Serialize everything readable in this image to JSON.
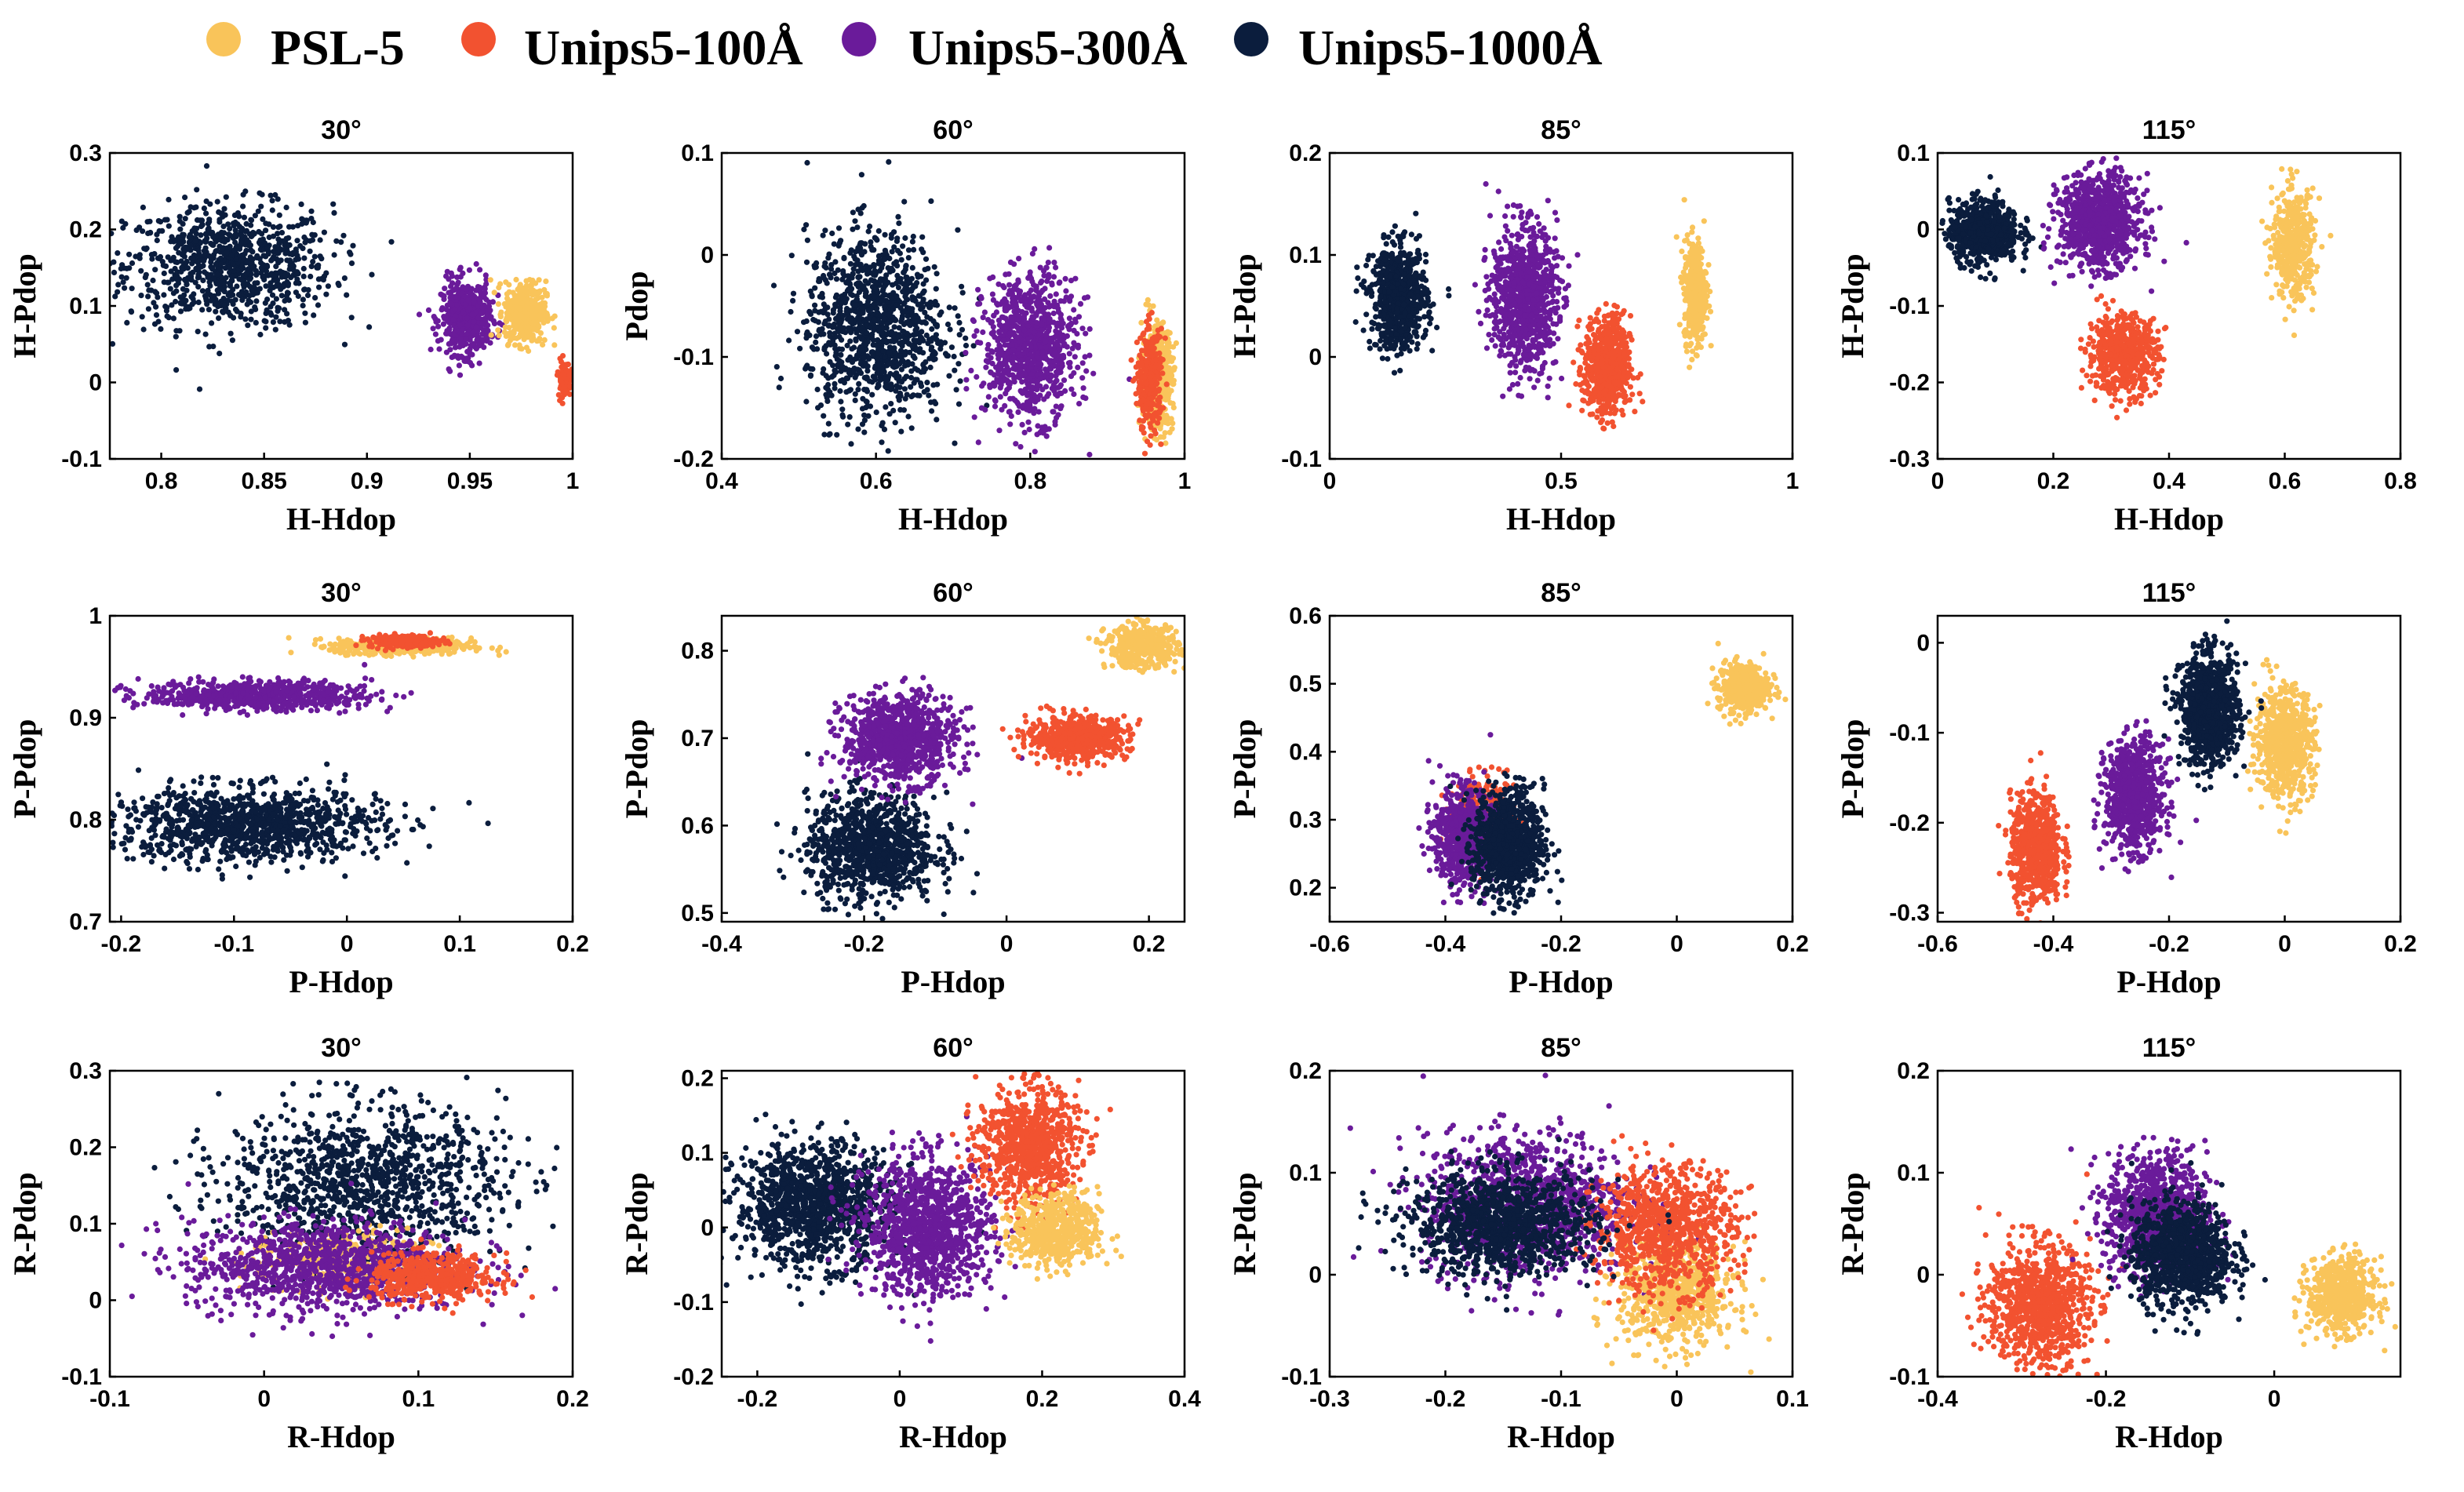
{
  "legend": [
    {
      "label": "PSL-5",
      "color": "#F9C45A"
    },
    {
      "label": "Unips5-100Å",
      "color": "#F25230"
    },
    {
      "label": "Unips5-300Å",
      "color": "#6A1B9A"
    },
    {
      "label": "Unips5-1000Å",
      "color": "#0B1D3D"
    }
  ],
  "chart_data": [
    {
      "type": "scatter",
      "title": "30°",
      "xlabel": "H-Hdop",
      "ylabel": "H-Pdop",
      "xlim": [
        0.775,
        1.0
      ],
      "ylim": [
        -0.1,
        0.3
      ],
      "xticks": [
        "0.8",
        "0.85",
        "0.9",
        "0.95",
        "1"
      ],
      "yticks": [
        "-0.1",
        "0",
        "0.1",
        "0.2",
        "0.3"
      ],
      "series": [
        {
          "color": "#0B1D3D",
          "cx": 0.833,
          "cy": 0.152,
          "sx": 0.025,
          "sy": 0.04,
          "n": 900
        },
        {
          "color": "#6A1B9A",
          "cx": 0.948,
          "cy": 0.085,
          "sx": 0.006,
          "sy": 0.024,
          "n": 500
        },
        {
          "color": "#F9C45A",
          "cx": 0.977,
          "cy": 0.092,
          "sx": 0.005,
          "sy": 0.02,
          "n": 450
        },
        {
          "color": "#F25230",
          "cx": 0.996,
          "cy": 0.005,
          "sx": 0.0015,
          "sy": 0.012,
          "n": 120
        }
      ]
    },
    {
      "type": "scatter",
      "title": "60°",
      "xlabel": "H-Hdop",
      "ylabel": "Pdop",
      "xlim": [
        0.4,
        1.0
      ],
      "ylim": [
        -0.2,
        0.1
      ],
      "xticks": [
        "0.4",
        "0.6",
        "0.8",
        "1"
      ],
      "yticks": [
        "-0.2",
        "-0.1",
        "0",
        "0.1"
      ],
      "series": [
        {
          "color": "#0B1D3D",
          "cx": 0.6,
          "cy": -0.07,
          "sx": 0.045,
          "sy": 0.045,
          "n": 1100
        },
        {
          "color": "#6A1B9A",
          "cx": 0.8,
          "cy": -0.09,
          "sx": 0.03,
          "sy": 0.035,
          "n": 900
        },
        {
          "color": "#F9C45A",
          "cx": 0.965,
          "cy": -0.12,
          "sx": 0.01,
          "sy": 0.025,
          "n": 450
        },
        {
          "color": "#F25230",
          "cx": 0.955,
          "cy": -0.125,
          "sx": 0.008,
          "sy": 0.025,
          "n": 300
        }
      ]
    },
    {
      "type": "scatter",
      "title": "85°",
      "xlabel": "H-Hdop",
      "ylabel": "H-Pdop",
      "xlim": [
        0.0,
        1.0
      ],
      "ylim": [
        -0.1,
        0.2
      ],
      "xticks": [
        "0",
        "0.5",
        "1"
      ],
      "yticks": [
        "-0.1",
        "0",
        "0.1",
        "0.2"
      ],
      "series": [
        {
          "color": "#0B1D3D",
          "cx": 0.15,
          "cy": 0.058,
          "sx": 0.03,
          "sy": 0.025,
          "n": 700
        },
        {
          "color": "#6A1B9A",
          "cx": 0.42,
          "cy": 0.058,
          "sx": 0.035,
          "sy": 0.035,
          "n": 900
        },
        {
          "color": "#F25230",
          "cx": 0.6,
          "cy": -0.01,
          "sx": 0.025,
          "sy": 0.025,
          "n": 600
        },
        {
          "color": "#F9C45A",
          "cx": 0.79,
          "cy": 0.065,
          "sx": 0.012,
          "sy": 0.025,
          "n": 450
        }
      ]
    },
    {
      "type": "scatter",
      "title": "115°",
      "xlabel": "H-Hdop",
      "ylabel": "H-Pdop",
      "xlim": [
        0.0,
        0.8
      ],
      "ylim": [
        -0.3,
        0.1
      ],
      "xticks": [
        "0",
        "0.2",
        "0.4",
        "0.6",
        "0.8"
      ],
      "yticks": [
        "-0.3",
        "-0.2",
        "-0.1",
        "0",
        "0.1"
      ],
      "series": [
        {
          "color": "#0B1D3D",
          "cx": 0.08,
          "cy": -0.003,
          "sx": 0.03,
          "sy": 0.02,
          "n": 700
        },
        {
          "color": "#6A1B9A",
          "cx": 0.28,
          "cy": 0.01,
          "sx": 0.035,
          "sy": 0.03,
          "n": 900
        },
        {
          "color": "#F25230",
          "cx": 0.32,
          "cy": -0.163,
          "sx": 0.03,
          "sy": 0.025,
          "n": 600
        },
        {
          "color": "#F9C45A",
          "cx": 0.615,
          "cy": -0.02,
          "sx": 0.018,
          "sy": 0.035,
          "n": 450
        }
      ]
    },
    {
      "type": "scatter",
      "title": "30°",
      "xlabel": "P-Hdop",
      "ylabel": "P-Pdop",
      "xlim": [
        -0.21,
        0.2
      ],
      "ylim": [
        0.7,
        1.0
      ],
      "xticks": [
        "-0.2",
        "-0.1",
        "0",
        "0.1",
        "0.2"
      ],
      "yticks": [
        "0.7",
        "0.8",
        "0.9",
        "1"
      ],
      "series": [
        {
          "color": "#0B1D3D",
          "cx": -0.09,
          "cy": 0.795,
          "sx": 0.06,
          "sy": 0.018,
          "n": 1100
        },
        {
          "color": "#6A1B9A",
          "cx": -0.08,
          "cy": 0.922,
          "sx": 0.05,
          "sy": 0.007,
          "n": 700
        },
        {
          "color": "#F9C45A",
          "cx": 0.05,
          "cy": 0.97,
          "sx": 0.03,
          "sy": 0.004,
          "n": 500
        },
        {
          "color": "#F25230",
          "cx": 0.05,
          "cy": 0.975,
          "sx": 0.015,
          "sy": 0.003,
          "n": 250
        }
      ]
    },
    {
      "type": "scatter",
      "title": "60°",
      "xlabel": "P-Hdop",
      "ylabel": "P-Pdop",
      "xlim": [
        -0.4,
        0.25
      ],
      "ylim": [
        0.49,
        0.84
      ],
      "xticks": [
        "-0.4",
        "-0.2",
        "0",
        "0.2"
      ],
      "yticks": [
        "0.5",
        "0.6",
        "0.7",
        "0.8"
      ],
      "series": [
        {
          "color": "#0B1D3D",
          "cx": -0.19,
          "cy": 0.575,
          "sx": 0.045,
          "sy": 0.03,
          "n": 1000
        },
        {
          "color": "#6A1B9A",
          "cx": -0.15,
          "cy": 0.7,
          "sx": 0.04,
          "sy": 0.025,
          "n": 900
        },
        {
          "color": "#F25230",
          "cx": 0.1,
          "cy": 0.7,
          "sx": 0.035,
          "sy": 0.012,
          "n": 600
        },
        {
          "color": "#F9C45A",
          "cx": 0.19,
          "cy": 0.805,
          "sx": 0.025,
          "sy": 0.012,
          "n": 450
        }
      ]
    },
    {
      "type": "scatter",
      "title": "85°",
      "xlabel": "P-Hdop",
      "ylabel": "P-Pdop",
      "xlim": [
        -0.6,
        0.2
      ],
      "ylim": [
        0.15,
        0.6
      ],
      "xticks": [
        "-0.6",
        "-0.4",
        "-0.2",
        "0",
        "0.2"
      ],
      "yticks": [
        "0.2",
        "0.3",
        "0.4",
        "0.5",
        "0.6"
      ],
      "series": [
        {
          "color": "#F25230",
          "cx": -0.33,
          "cy": 0.3,
          "sx": 0.025,
          "sy": 0.03,
          "n": 400
        },
        {
          "color": "#6A1B9A",
          "cx": -0.37,
          "cy": 0.275,
          "sx": 0.025,
          "sy": 0.035,
          "n": 700
        },
        {
          "color": "#0B1D3D",
          "cx": -0.29,
          "cy": 0.265,
          "sx": 0.03,
          "sy": 0.04,
          "n": 900
        },
        {
          "color": "#F9C45A",
          "cx": 0.115,
          "cy": 0.495,
          "sx": 0.022,
          "sy": 0.018,
          "n": 450
        }
      ]
    },
    {
      "type": "scatter",
      "title": "115°",
      "xlabel": "P-Hdop",
      "ylabel": "P-Pdop",
      "xlim": [
        -0.6,
        0.2
      ],
      "ylim": [
        -0.31,
        0.03
      ],
      "xticks": [
        "-0.6",
        "-0.4",
        "-0.2",
        "0",
        "0.2"
      ],
      "yticks": [
        "-0.3",
        "-0.2",
        "-0.1",
        "0"
      ],
      "series": [
        {
          "color": "#F25230",
          "cx": -0.43,
          "cy": -0.23,
          "sx": 0.022,
          "sy": 0.03,
          "n": 700
        },
        {
          "color": "#6A1B9A",
          "cx": -0.26,
          "cy": -0.17,
          "sx": 0.025,
          "sy": 0.03,
          "n": 800
        },
        {
          "color": "#F9C45A",
          "cx": 0.0,
          "cy": -0.11,
          "sx": 0.025,
          "sy": 0.03,
          "n": 700
        },
        {
          "color": "#0B1D3D",
          "cx": -0.13,
          "cy": -0.075,
          "sx": 0.025,
          "sy": 0.03,
          "n": 900
        }
      ]
    },
    {
      "type": "scatter",
      "title": "30°",
      "xlabel": "R-Hdop",
      "ylabel": "R-Pdop",
      "xlim": [
        -0.1,
        0.2
      ],
      "ylim": [
        -0.1,
        0.3
      ],
      "xticks": [
        "-0.1",
        "0",
        "0.1",
        "0.2"
      ],
      "yticks": [
        "-0.1",
        "0",
        "0.1",
        "0.2",
        "0.3"
      ],
      "series": [
        {
          "color": "#0B1D3D",
          "cx": 0.065,
          "cy": 0.155,
          "sx": 0.045,
          "sy": 0.05,
          "n": 1100
        },
        {
          "color": "#F9C45A",
          "cx": 0.05,
          "cy": 0.05,
          "sx": 0.03,
          "sy": 0.02,
          "n": 300
        },
        {
          "color": "#6A1B9A",
          "cx": 0.04,
          "cy": 0.045,
          "sx": 0.045,
          "sy": 0.03,
          "n": 1100
        },
        {
          "color": "#F25230",
          "cx": 0.11,
          "cy": 0.03,
          "sx": 0.02,
          "sy": 0.015,
          "n": 500
        }
      ]
    },
    {
      "type": "scatter",
      "title": "60°",
      "xlabel": "R-Hdop",
      "ylabel": "R-Pdop",
      "xlim": [
        -0.25,
        0.4
      ],
      "ylim": [
        -0.2,
        0.21
      ],
      "xticks": [
        "-0.2",
        "0",
        "0.2",
        "0.4"
      ],
      "yticks": [
        "-0.2",
        "-0.1",
        "0",
        "0.1",
        "0.2"
      ],
      "series": [
        {
          "color": "#0B1D3D",
          "cx": -0.12,
          "cy": 0.03,
          "sx": 0.055,
          "sy": 0.04,
          "n": 1200
        },
        {
          "color": "#6A1B9A",
          "cx": 0.04,
          "cy": 0.0,
          "sx": 0.045,
          "sy": 0.045,
          "n": 1100
        },
        {
          "color": "#F25230",
          "cx": 0.18,
          "cy": 0.11,
          "sx": 0.035,
          "sy": 0.04,
          "n": 800
        },
        {
          "color": "#F9C45A",
          "cx": 0.22,
          "cy": -0.005,
          "sx": 0.03,
          "sy": 0.025,
          "n": 600
        }
      ]
    },
    {
      "type": "scatter",
      "title": "85°",
      "xlabel": "R-Hdop",
      "ylabel": "R-Pdop",
      "xlim": [
        -0.3,
        0.1
      ],
      "ylim": [
        -0.1,
        0.2
      ],
      "xticks": [
        "-0.3",
        "-0.2",
        "-0.1",
        "0",
        "0.1"
      ],
      "yticks": [
        "-0.1",
        "0",
        "0.1",
        "0.2"
      ],
      "series": [
        {
          "color": "#6A1B9A",
          "cx": -0.13,
          "cy": 0.07,
          "sx": 0.045,
          "sy": 0.035,
          "n": 1100
        },
        {
          "color": "#F9C45A",
          "cx": 0.0,
          "cy": -0.02,
          "sx": 0.025,
          "sy": 0.025,
          "n": 700
        },
        {
          "color": "#F25230",
          "cx": -0.01,
          "cy": 0.045,
          "sx": 0.03,
          "sy": 0.03,
          "n": 900
        },
        {
          "color": "#0B1D3D",
          "cx": -0.15,
          "cy": 0.05,
          "sx": 0.04,
          "sy": 0.025,
          "n": 1100
        }
      ]
    },
    {
      "type": "scatter",
      "title": "115°",
      "xlabel": "R-Hdop",
      "ylabel": "R-Pdop",
      "xlim": [
        -0.4,
        0.15
      ],
      "ylim": [
        -0.1,
        0.2
      ],
      "xticks": [
        "-0.4",
        "-0.2",
        "0"
      ],
      "yticks": [
        "-0.1",
        "0",
        "0.1",
        "0.2"
      ],
      "series": [
        {
          "color": "#F25230",
          "cx": -0.28,
          "cy": -0.03,
          "sx": 0.03,
          "sy": 0.03,
          "n": 900
        },
        {
          "color": "#6A1B9A",
          "cx": -0.14,
          "cy": 0.06,
          "sx": 0.03,
          "sy": 0.03,
          "n": 900
        },
        {
          "color": "#0B1D3D",
          "cx": -0.11,
          "cy": 0.02,
          "sx": 0.03,
          "sy": 0.025,
          "n": 1000
        },
        {
          "color": "#F9C45A",
          "cx": 0.08,
          "cy": -0.02,
          "sx": 0.02,
          "sy": 0.018,
          "n": 600
        }
      ]
    }
  ]
}
